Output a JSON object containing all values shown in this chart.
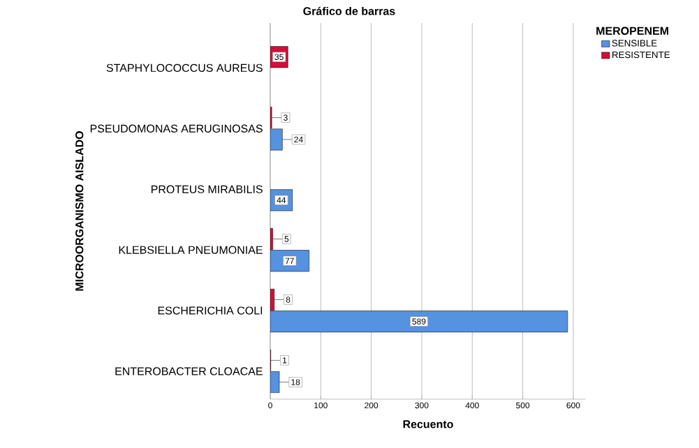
{
  "chart_data": {
    "type": "bar",
    "orientation": "horizontal",
    "title": "Gráfico de barras",
    "xlabel": "Recuento",
    "ylabel": "MICROORGANISMO AISLADO",
    "legend_title": "MEROPENEM",
    "categories": [
      "STAPHYLOCOCCUS AUREUS",
      "PSEUDOMONAS AERUGINOSAS",
      "PROTEUS MIRABILIS",
      "KLEBSIELLA PNEUMONIAE",
      "ESCHERICHIA COLI",
      "ENTEROBACTER CLOACAE"
    ],
    "series": [
      {
        "name": "SENSIBLE",
        "color": "#5592e0",
        "values": [
          null,
          24,
          44,
          77,
          589,
          18
        ]
      },
      {
        "name": "RESISTENTE",
        "color": "#d0103a",
        "values": [
          35,
          3,
          null,
          5,
          8,
          1
        ]
      }
    ],
    "xlim": [
      0,
      625
    ],
    "xticks": [
      0,
      100,
      200,
      300,
      400,
      500,
      600
    ],
    "grid": "x",
    "legend": "top right",
    "data_labels": true
  }
}
